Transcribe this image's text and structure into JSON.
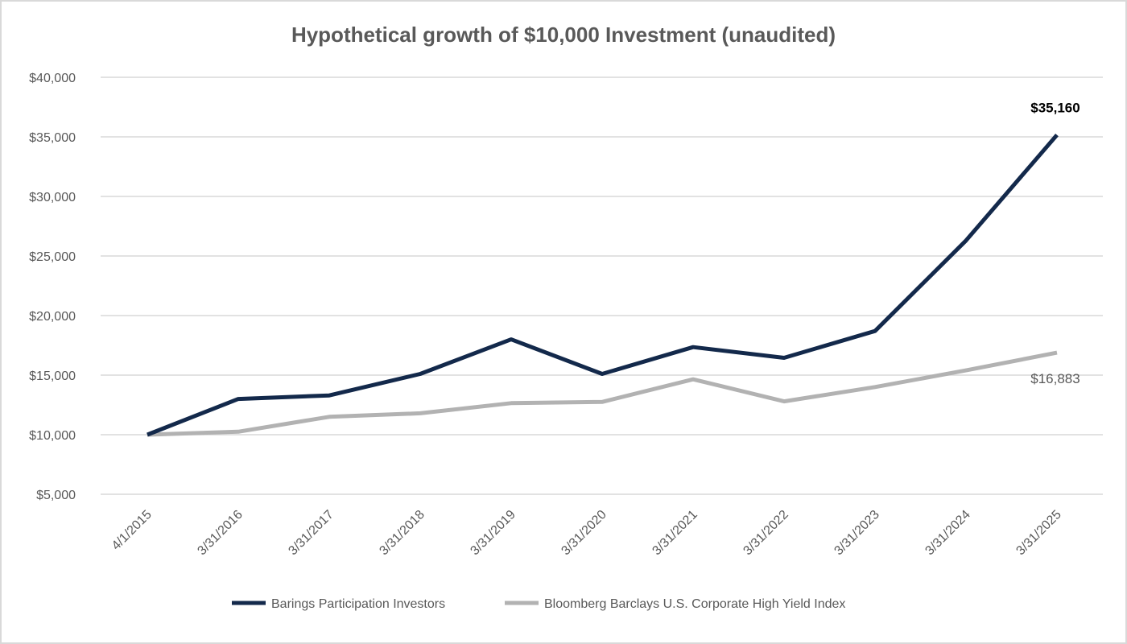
{
  "chart_data": {
    "type": "line",
    "title": "Hypothetical growth of $10,000 Investment (unaudited)",
    "xlabel": "",
    "ylabel": "",
    "x": [
      "4/1/2015",
      "3/31/2016",
      "3/31/2017",
      "3/31/2018",
      "3/31/2019",
      "3/31/2020",
      "3/31/2021",
      "3/31/2022",
      "3/31/2023",
      "3/31/2024",
      "3/31/2025"
    ],
    "ylim": [
      5000,
      40000
    ],
    "yticks": [
      5000,
      10000,
      15000,
      20000,
      25000,
      30000,
      35000,
      40000
    ],
    "ytick_labels": [
      "$5,000",
      "$10,000",
      "$15,000",
      "$20,000",
      "$25,000",
      "$30,000",
      "$35,000",
      "$40,000"
    ],
    "grid": true,
    "legend_position": "bottom",
    "series": [
      {
        "name": "Barings Participation Investors",
        "color": "#13294b",
        "values": [
          10000,
          13000,
          13300,
          15100,
          18000,
          15100,
          17350,
          16450,
          18700,
          26300,
          35160
        ]
      },
      {
        "name": "Bloomberg Barclays U.S. Corporate High Yield Index",
        "color": "#b2b2b2",
        "values": [
          10000,
          10250,
          11500,
          11800,
          12650,
          12750,
          14650,
          12800,
          14000,
          15400,
          16883
        ]
      }
    ],
    "annotations": [
      {
        "text": "$35,160",
        "series": 0,
        "index": 10,
        "style": "bold"
      },
      {
        "text": "$16,883",
        "series": 1,
        "index": 10,
        "style": "light"
      }
    ]
  }
}
